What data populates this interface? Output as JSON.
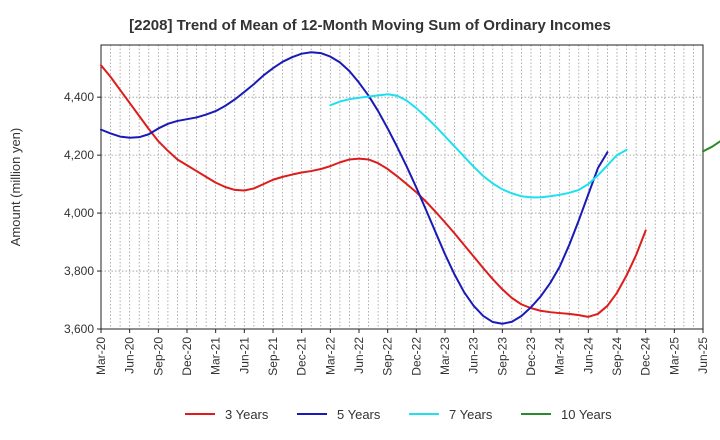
{
  "chart_data": {
    "type": "line",
    "title": "[2208]  Trend of Mean of 12-Month Moving Sum of Ordinary Incomes",
    "xlabel": "",
    "ylabel": "Amount (million yen)",
    "ylim": [
      3600,
      4580
    ],
    "yticks": [
      3600,
      3800,
      4000,
      4200,
      4400
    ],
    "ytick_labels": [
      "3,600",
      "3,800",
      "4,000",
      "4,200",
      "4,400"
    ],
    "x_tick_labels": [
      "Mar-20",
      "Jun-20",
      "Sep-20",
      "Dec-20",
      "Mar-21",
      "Jun-21",
      "Sep-21",
      "Dec-21",
      "Mar-22",
      "Jun-22",
      "Sep-22",
      "Dec-22",
      "Mar-23",
      "Jun-23",
      "Sep-23",
      "Dec-23",
      "Mar-24",
      "Jun-24",
      "Sep-24",
      "Dec-24",
      "Mar-25",
      "Jun-25"
    ],
    "grid": true,
    "legend_position": "bottom",
    "series": [
      {
        "name": "3 Years",
        "color": "#dd1c1c",
        "start_index": 0,
        "values": [
          4510,
          4470,
          4425,
          4380,
          4335,
          4290,
          4248,
          4215,
          4185,
          4165,
          4145,
          4125,
          4105,
          4090,
          4080,
          4078,
          4085,
          4100,
          4115,
          4125,
          4133,
          4140,
          4145,
          4152,
          4162,
          4175,
          4185,
          4188,
          4185,
          4172,
          4152,
          4127,
          4100,
          4072,
          4040,
          4005,
          3968,
          3930,
          3890,
          3850,
          3810,
          3772,
          3737,
          3707,
          3685,
          3672,
          3663,
          3658,
          3655,
          3652,
          3648,
          3642,
          3652,
          3680,
          3725,
          3785,
          3855,
          3940
        ]
      },
      {
        "name": "5 Years",
        "color": "#1a1ab8",
        "start_index": 0,
        "values": [
          4288,
          4275,
          4264,
          4260,
          4262,
          4272,
          4292,
          4308,
          4318,
          4324,
          4330,
          4340,
          4352,
          4370,
          4392,
          4418,
          4445,
          4475,
          4500,
          4522,
          4538,
          4550,
          4555,
          4552,
          4540,
          4520,
          4490,
          4450,
          4405,
          4352,
          4292,
          4228,
          4160,
          4088,
          4012,
          3935,
          3858,
          3788,
          3727,
          3680,
          3645,
          3624,
          3618,
          3625,
          3645,
          3675,
          3712,
          3758,
          3815,
          3890,
          3975,
          4065,
          4155,
          4210
        ]
      },
      {
        "name": "7 Years",
        "color": "#1ee0ee",
        "start_index": 24,
        "values": [
          4372,
          4385,
          4393,
          4398,
          4402,
          4406,
          4410,
          4405,
          4388,
          4362,
          4332,
          4300,
          4265,
          4230,
          4195,
          4160,
          4128,
          4102,
          4082,
          4068,
          4058,
          4054,
          4054,
          4058,
          4063,
          4070,
          4080,
          4100,
          4130,
          4165,
          4200,
          4218
        ]
      },
      {
        "name": "10 Years",
        "color": "#2a8a2a",
        "start_index": 63,
        "values": [
          4213,
          4230,
          4252
        ]
      }
    ]
  }
}
